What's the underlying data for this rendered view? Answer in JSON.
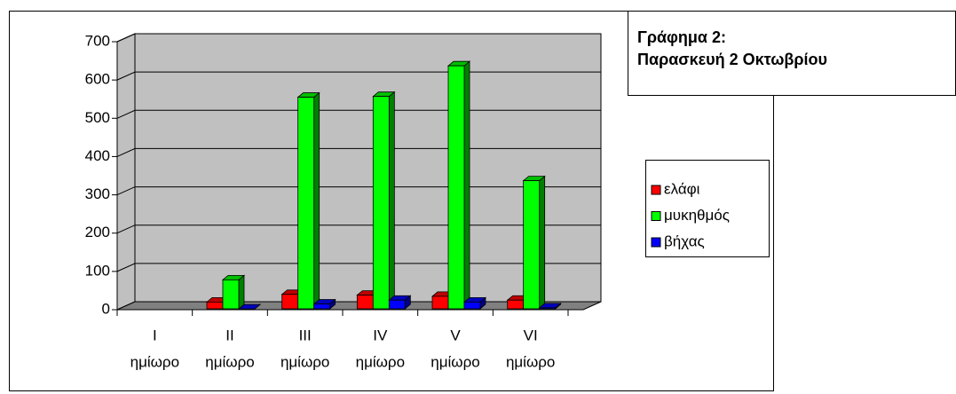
{
  "chart_data": {
    "type": "bar3d",
    "title": [
      "Γράφημα 2:",
      "Παρασκευή 2 Οκτωβρίου"
    ],
    "categories": [
      [
        "I",
        "ημίωρο"
      ],
      [
        "II",
        "ημίωρο"
      ],
      [
        "III",
        "ημίωρο"
      ],
      [
        "IV",
        "ημίωρο"
      ],
      [
        "V",
        "ημίωρο"
      ],
      [
        "VI",
        "ημίωρο"
      ]
    ],
    "series": [
      {
        "name": "ελάφι",
        "color": "#ff0000",
        "values": [
          null,
          20,
          40,
          38,
          35,
          25
        ]
      },
      {
        "name": "μυκηθμός",
        "color": "#00ff00",
        "values": [
          null,
          78,
          555,
          557,
          637,
          337
        ]
      },
      {
        "name": "βήχας",
        "color": "#0000ff",
        "values": [
          null,
          2,
          15,
          25,
          20,
          5
        ]
      }
    ],
    "ylim": [
      0,
      700
    ],
    "yticks": [
      0,
      100,
      200,
      300,
      400,
      500,
      600,
      700
    ],
    "grid": true,
    "legend": "right"
  }
}
